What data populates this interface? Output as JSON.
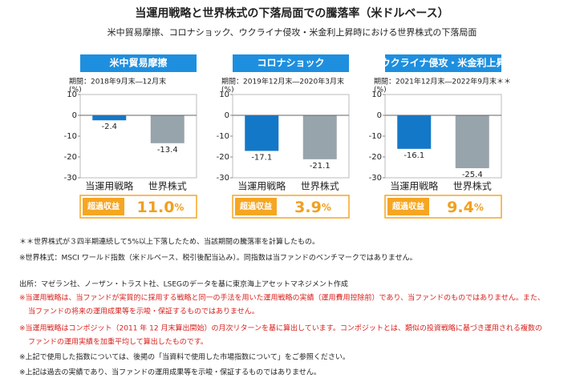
{
  "title": "当運用戦略と世界株式の下落局面での騰落率（米ドルベース）",
  "subtitle": "米中貿易摩擦、コロナショック、ウクライナ侵攻・米金利上昇時における世界株式の下落局面",
  "chart_data": [
    {
      "type": "bar",
      "title": "米中貿易摩擦",
      "period": "期間：2018年9月末―12月末",
      "ylabel": "(%)",
      "categories": [
        "当運用戦略",
        "世界株式"
      ],
      "values": [
        -2.4,
        -13.4
      ],
      "colors": [
        "#1478c8",
        "#98a4ab"
      ],
      "ylim": [
        -30,
        10
      ],
      "yticks": [
        10,
        0,
        -10,
        -20,
        -30
      ],
      "excess_label": "超過収益",
      "excess_value": "11.0",
      "excess_unit": "%"
    },
    {
      "type": "bar",
      "title": "コロナショック",
      "period": "期間：2019年12月末―2020年3月末",
      "ylabel": "(%)",
      "categories": [
        "当運用戦略",
        "世界株式"
      ],
      "values": [
        -17.1,
        -21.1
      ],
      "colors": [
        "#1478c8",
        "#98a4ab"
      ],
      "ylim": [
        -30,
        10
      ],
      "yticks": [
        10,
        0,
        -10,
        -20,
        -30
      ],
      "excess_label": "超過収益",
      "excess_value": "3.9",
      "excess_unit": "%"
    },
    {
      "type": "bar",
      "title": "ウクライナ侵攻・米金利上昇",
      "period": "期間：2021年12月末―2022年9月末＊＊",
      "ylabel": "(%)",
      "categories": [
        "当運用戦略",
        "世界株式"
      ],
      "values": [
        -16.1,
        -25.4
      ],
      "colors": [
        "#1478c8",
        "#98a4ab"
      ],
      "ylim": [
        -30,
        10
      ],
      "yticks": [
        10,
        0,
        -10,
        -20,
        -30
      ],
      "excess_label": "超過収益",
      "excess_value": "9.4",
      "excess_unit": "%"
    }
  ],
  "notes": [
    {
      "text": "＊＊世界株式が３四半期連続して5%以上下落したため、当該期間の騰落率を計算したもの。",
      "color": "#222222"
    },
    {
      "text": "※世界株式：MSCI ワールド指数（米ドルベース、税引後配当込み）。同指数は当ファンドのベンチマークではありません。",
      "color": "#222222"
    },
    {
      "text": "出所：マゼラン社、ノーザン・トラスト社、LSEGのデータを基に東京海上アセットマネジメント作成",
      "color": "#222222"
    },
    {
      "text": "※当運用戦略は、当ファンドが実質的に採用する戦略と同一の手法を用いた運用戦略の実績（運用費用控除前）であり、当ファンドのものではありません。また、",
      "color": "#d8201c"
    },
    {
      "text": "当ファンドの将来の運用成果等を示唆・保証するものではありません。",
      "color": "#d8201c"
    },
    {
      "text": "※当運用戦略はコンポジット（2011 年 12 月末算出開始）の月次リターンを基に算出しています。コンポジットとは、類似の投資戦略に基づき運用される複数の",
      "color": "#d8201c"
    },
    {
      "text": "ファンドの運用実績を加重平均して算出したものです。",
      "color": "#d8201c"
    },
    {
      "text": "※上記で使用した指数については、後掲の「当資料で使用した市場指数について」をご参照ください。",
      "color": "#222222"
    },
    {
      "text": "※上記は過去の実績であり、当ファンドの運用成果等を示唆・保証するものではありません。",
      "color": "#222222"
    }
  ]
}
